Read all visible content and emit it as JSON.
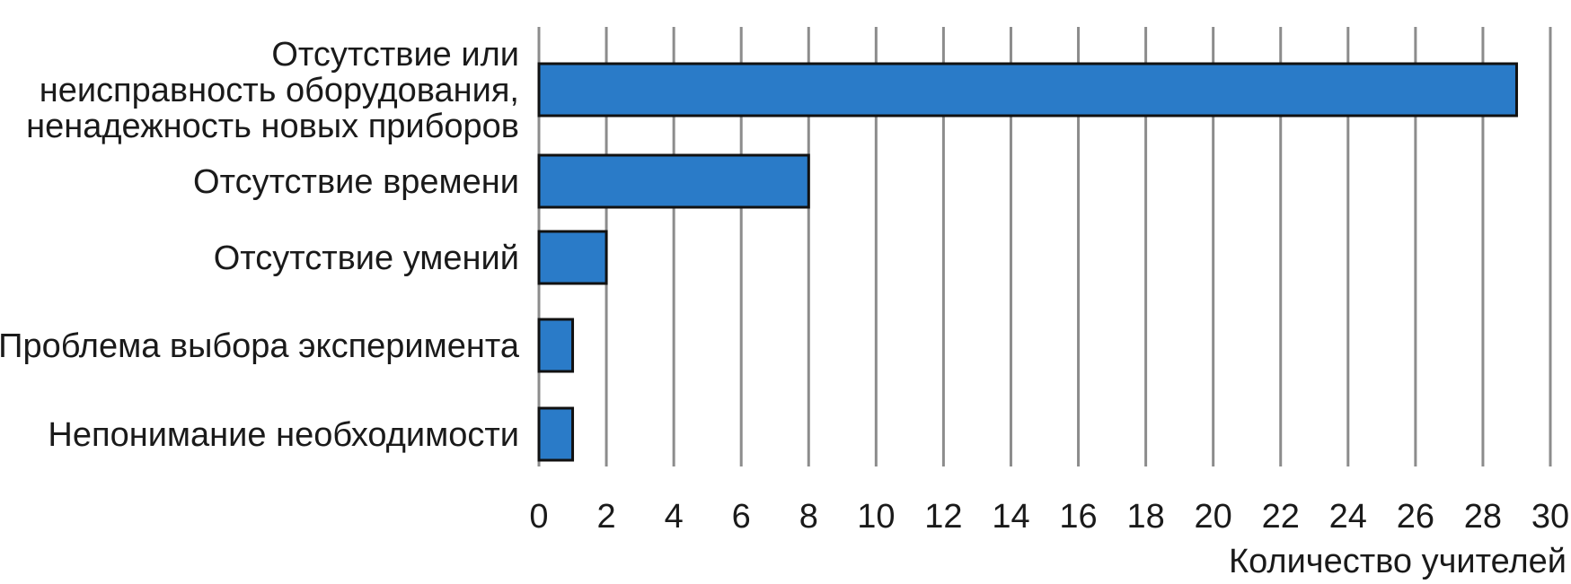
{
  "chart_data": {
    "type": "bar",
    "orientation": "horizontal",
    "categories": [
      [
        "Отсутствие или",
        "неисправность оборудования,",
        "ненадежность новых приборов"
      ],
      [
        "Отсутствие времени"
      ],
      [
        "Отсутствие умений"
      ],
      [
        "Проблема выбора эксперимента"
      ],
      [
        "Непонимание необходимости"
      ]
    ],
    "values": [
      29,
      8,
      2,
      1,
      1
    ],
    "xlim": [
      0,
      30
    ],
    "xticks": [
      0,
      2,
      4,
      6,
      8,
      10,
      12,
      14,
      16,
      18,
      20,
      22,
      24,
      26,
      28,
      30
    ],
    "xlabel": "Количество учителей",
    "title": "",
    "grid": "vertical",
    "colors": {
      "bar_fill": "#2a7bc8",
      "bar_stroke": "#111111",
      "grid": "#8c8c8c",
      "text": "#1a1a1a"
    }
  }
}
